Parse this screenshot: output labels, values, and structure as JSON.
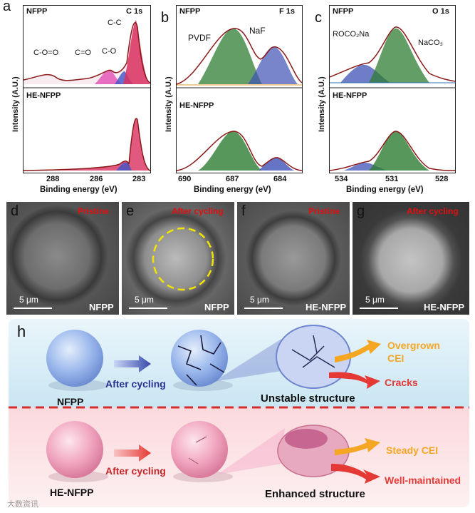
{
  "panels": {
    "a": {
      "label": "a",
      "top_tag": "NFPP",
      "bottom_tag": "HE-NFPP",
      "title": "C 1s",
      "xticks": [
        "288",
        "286",
        "283"
      ],
      "xlabel": "Binding energy (eV)",
      "ylabel": "Intensity (A.U.)",
      "peaks": [
        "C-O=O",
        "C=O",
        "C-O",
        "C-C"
      ]
    },
    "b": {
      "label": "b",
      "top_tag": "NFPP",
      "bottom_tag": "HE-NFPP",
      "title": "F 1s",
      "xticks": [
        "690",
        "687",
        "684"
      ],
      "xlabel": "Binding energy (eV)",
      "ylabel": "Intensity (A.U.)",
      "peaks": [
        "PVDF",
        "NaF"
      ]
    },
    "c": {
      "label": "c",
      "top_tag": "NFPP",
      "bottom_tag": "HE-NFPP",
      "title": "O 1s",
      "xticks": [
        "534",
        "531",
        "528"
      ],
      "xlabel": "Binding energy (eV)",
      "ylabel": "Intensity (A.U.)",
      "peaks": [
        "ROCO₂Na",
        "NaCO₃"
      ]
    }
  },
  "sem": [
    {
      "label": "d",
      "state": "Pristine",
      "sample": "NFPP",
      "scale": "5 μm"
    },
    {
      "label": "e",
      "state": "After cycling",
      "sample": "NFPP",
      "scale": "5 μm"
    },
    {
      "label": "f",
      "state": "Pristine",
      "sample": "HE-NFPP",
      "scale": "5 μm"
    },
    {
      "label": "g",
      "state": "After cycling",
      "sample": "HE-NFPP",
      "scale": "5 μm"
    }
  ],
  "scheme": {
    "label": "h",
    "top": {
      "sample": "NFPP",
      "arrow": "After cycling",
      "structure": "Unstable structure",
      "out1": "Overgrown CEI",
      "out2": "Cracks"
    },
    "bottom": {
      "sample": "HE-NFPP",
      "arrow": "After cycling",
      "structure": "Enhanced structure",
      "out1": "Steady CEI",
      "out2": "Well-maintained"
    }
  },
  "watermark": "大数资讯",
  "colors": {
    "green": "#2e7d32",
    "blue": "#3f51b5",
    "red": "#c0392b",
    "pink": "#e05a8a",
    "orange": "#f5a623",
    "ribbon_red": "#e53935"
  }
}
